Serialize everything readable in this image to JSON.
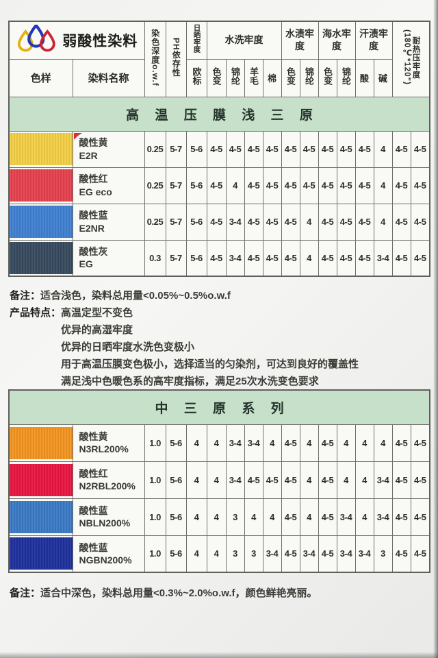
{
  "theme": {
    "banner_green": "#c7e0c9",
    "paper": "#f9f9f6",
    "grid": "#6e6e6a"
  },
  "logo": {
    "yellow": "#e5af0e",
    "blue": "#2337b5",
    "red": "#cd2232"
  },
  "header": {
    "brand": "弱酸性染料",
    "col_sample": "色样",
    "col_name": "染料名称",
    "col_depth": "染色深度o.w.f",
    "col_ph": "PH依存性",
    "col_sun": "日晒牢度",
    "sun_sub": "欧标",
    "col_wash": "水洗牢度",
    "wash_subs": [
      "色变",
      "锦纶",
      "羊毛",
      "棉"
    ],
    "col_stain": "水渍牢度",
    "stain_subs": [
      "色变",
      "锦纶"
    ],
    "col_sea": "海水牢度",
    "sea_subs": [
      "色变",
      "锦纶"
    ],
    "col_sweat": "汗渍牢度",
    "sweat_subs": [
      "酸",
      "碱"
    ],
    "col_heat_line1": "耐热压牢度",
    "col_heat_line2": "(180℃*120\")"
  },
  "table1": {
    "banner": "高 温 压 膜 浅 三 原",
    "rows": [
      {
        "color": "#f2cf45",
        "name": "酸性黄",
        "code": "E2R",
        "marker": true,
        "values": [
          "0.25",
          "5-7",
          "5-6",
          "4-5",
          "4-5",
          "4-5",
          "4-5",
          "4-5",
          "4-5",
          "4-5",
          "4-5",
          "4-5",
          "4",
          "4-5",
          "4-5"
        ]
      },
      {
        "color": "#e5404e",
        "name": "酸性红",
        "code": "EG eco",
        "marker": false,
        "values": [
          "0.25",
          "5-7",
          "5-6",
          "4-5",
          "4",
          "4-5",
          "4-5",
          "4-5",
          "4-5",
          "4-5",
          "4-5",
          "4-5",
          "4",
          "4-5",
          "4-5"
        ]
      },
      {
        "color": "#3f7fd0",
        "name": "酸性蓝",
        "code": "E2NR",
        "marker": false,
        "values": [
          "0.25",
          "5-7",
          "5-6",
          "4-5",
          "3-4",
          "4-5",
          "4-5",
          "4-5",
          "4",
          "4-5",
          "4-5",
          "4-5",
          "4",
          "4-5",
          "4-5"
        ]
      },
      {
        "color": "#36495d",
        "name": "酸性灰",
        "code": "EG",
        "marker": false,
        "values": [
          "0.3",
          "5-7",
          "5-6",
          "4-5",
          "3-4",
          "4-5",
          "4-5",
          "4-5",
          "4",
          "4-5",
          "4-5",
          "4-5",
          "3-4",
          "4-5",
          "4-5"
        ]
      }
    ],
    "note_label": "备注：",
    "note": "适合浅色，染料总用量<0.05%~0.5%o.w.f",
    "features_label": "产品特点：",
    "features": [
      "高温定型不变色",
      "优异的高湿牢度",
      "优异的日晒牢度水洗色变极小",
      "用于高温压膜变色极小，选择适当的匀染剂，可达到良好的覆盖性",
      "满足浅中色暖色系的高牢度指标，满足25次水洗变色要求"
    ]
  },
  "table2": {
    "banner": "中 三 原 系 列",
    "rows": [
      {
        "color": "#f29420",
        "name": "酸性黄",
        "code": "N3RL200%",
        "marker": false,
        "values": [
          "1.0",
          "5-6",
          "4",
          "4",
          "3-4",
          "3-4",
          "4",
          "4-5",
          "4",
          "4-5",
          "4",
          "4",
          "4",
          "4-5",
          "4-5"
        ]
      },
      {
        "color": "#e81540",
        "name": "酸性红",
        "code": "N2RBL200%",
        "marker": false,
        "values": [
          "1.0",
          "5-6",
          "4",
          "4",
          "3-4",
          "4-5",
          "4-5",
          "4-5",
          "4",
          "4-5",
          "4",
          "4",
          "3-4",
          "4-5",
          "4-5"
        ]
      },
      {
        "color": "#3a79c4",
        "name": "酸性蓝",
        "code": "NBLN200%",
        "marker": false,
        "values": [
          "1.0",
          "5-6",
          "4",
          "4",
          "3",
          "4",
          "4",
          "4-5",
          "4",
          "4-5",
          "3-4",
          "4",
          "3-4",
          "4-5",
          "4-5"
        ]
      },
      {
        "color": "#1d2f9c",
        "name": "酸性蓝",
        "code": "NGBN200%",
        "marker": false,
        "values": [
          "1.0",
          "5-6",
          "4",
          "4",
          "3",
          "3",
          "3-4",
          "4-5",
          "3-4",
          "4-5",
          "3-4",
          "3-4",
          "3",
          "4-5",
          "4-5"
        ]
      }
    ],
    "note_label": "备注：",
    "note": "适合中深色，染料总用量<0.3%~2.0%o.w.f，颜色鲜艳亮丽。"
  }
}
